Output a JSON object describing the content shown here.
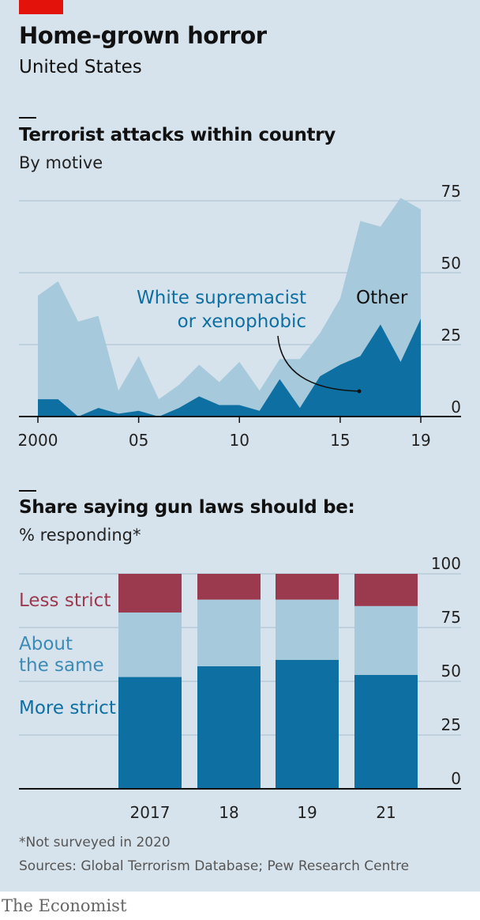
{
  "header": {
    "title": "Home-grown horror",
    "subtitle": "United States"
  },
  "colors": {
    "dark": "#0d6fa2",
    "light": "#a6c9dc",
    "red": "#9b3a4e",
    "grid": "#a8bfcf",
    "brand_red": "#e3120b"
  },
  "chart1": {
    "title": "Terrorist attacks within country",
    "subtitle": "By motive"
  },
  "chart2": {
    "title": "Share saying gun laws should be:",
    "subtitle": "% responding*"
  },
  "chart_data": [
    {
      "type": "area",
      "title": "Terrorist attacks within country",
      "subtitle": "By motive",
      "x": [
        2000,
        2001,
        2002,
        2003,
        2004,
        2005,
        2006,
        2007,
        2008,
        2009,
        2010,
        2011,
        2012,
        2013,
        2014,
        2015,
        2016,
        2017,
        2018,
        2019
      ],
      "x_tick_labels": [
        "2000",
        "05",
        "10",
        "15",
        "19"
      ],
      "x_tick_values": [
        2000,
        2005,
        2010,
        2015,
        2019
      ],
      "y_ticks": [
        0,
        25,
        50,
        75
      ],
      "ylim": [
        0,
        75
      ],
      "stacked": true,
      "grid": true,
      "series": [
        {
          "name": "White supremacist or xenophobic",
          "label_lines": [
            "White supremacist",
            "or xenophobic"
          ],
          "color": "#0d6fa2",
          "values": [
            6,
            6,
            0,
            3,
            1,
            2,
            0,
            3,
            7,
            4,
            4,
            2,
            13,
            3,
            14,
            18,
            21,
            32,
            19,
            34
          ]
        },
        {
          "name": "Other",
          "color": "#a6c9dc",
          "total_values": [
            42,
            47,
            33,
            35,
            9,
            21,
            6,
            11,
            18,
            12,
            19,
            9,
            20,
            20,
            29,
            41,
            68,
            66,
            76,
            72
          ]
        }
      ]
    },
    {
      "type": "bar",
      "stacked": true,
      "title": "Share saying gun laws should be:",
      "subtitle": "% responding*",
      "categories": [
        "2017",
        "18",
        "19",
        "21"
      ],
      "y_ticks": [
        0,
        25,
        50,
        75,
        100
      ],
      "ylim": [
        0,
        100
      ],
      "grid": true,
      "series": [
        {
          "name": "More strict",
          "label_lines": [
            "More strict"
          ],
          "color": "#0d6fa2",
          "values": [
            52,
            57,
            60,
            53
          ]
        },
        {
          "name": "About the same",
          "label_lines": [
            "About",
            "the same"
          ],
          "color": "#a6c9dc",
          "values": [
            30,
            31,
            28,
            32
          ]
        },
        {
          "name": "Less strict",
          "label_lines": [
            "Less strict"
          ],
          "color": "#9b3a4e",
          "values": [
            18,
            12,
            12,
            15
          ]
        }
      ]
    }
  ],
  "footnote": "*Not surveyed in 2020",
  "sources": "Sources: Global Terrorism Database; Pew Research Centre",
  "brand": "The Economist"
}
